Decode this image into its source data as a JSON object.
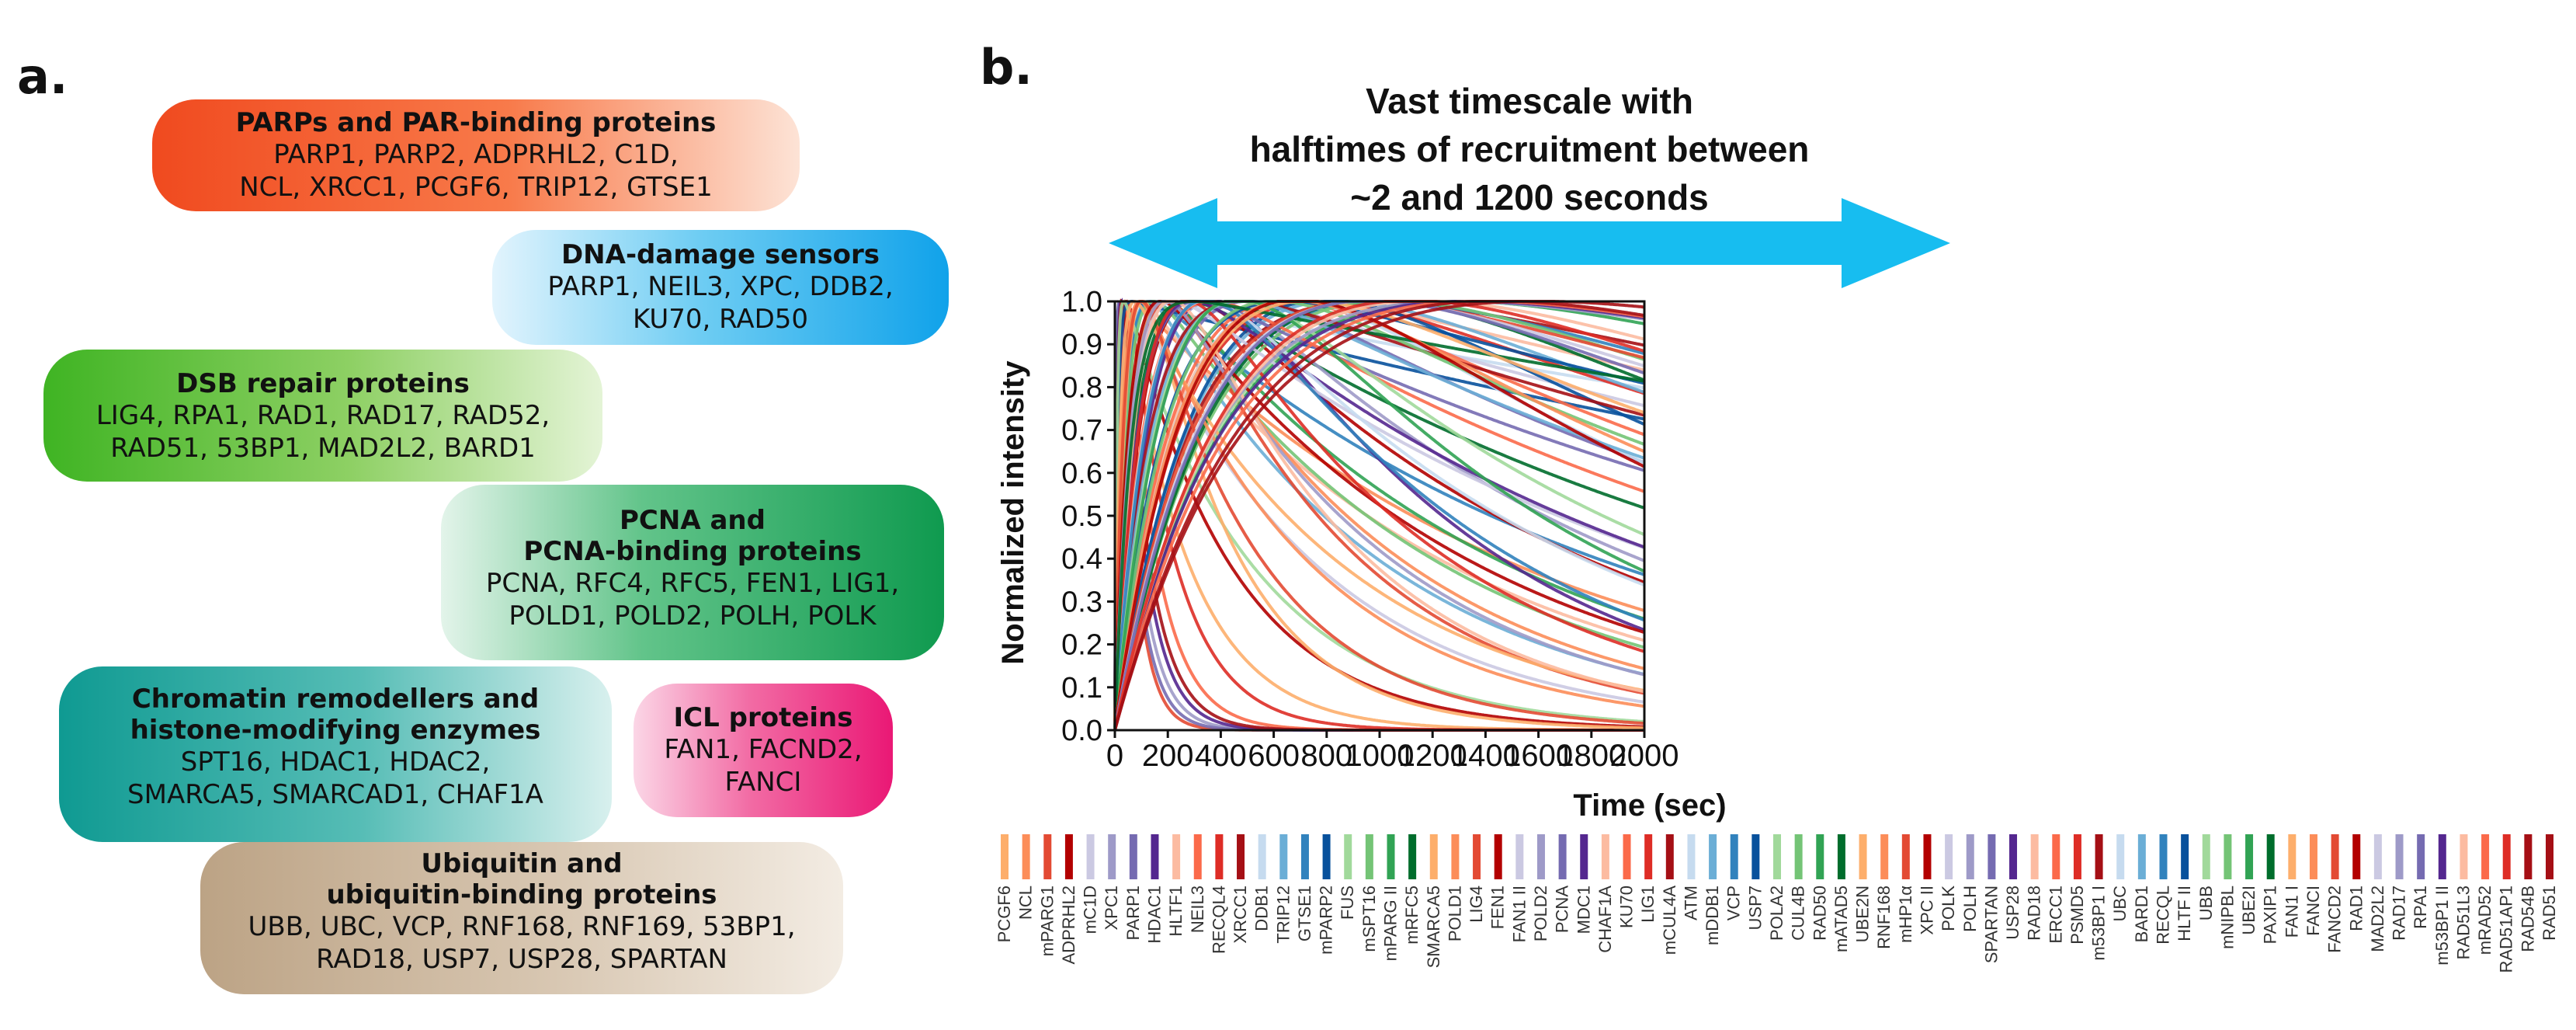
{
  "panel_a": {
    "label": "a.",
    "groups": [
      {
        "title": "PARPs and PAR-binding proteins",
        "lines": [
          "PARP1, PARP2, ADPRHL2, C1D,",
          "NCL, XRCC1, PCGF6, TRIP12, GTSE1"
        ],
        "color": "#f5552a"
      },
      {
        "title": "DNA-damage sensors",
        "lines": [
          "PARP1, NEIL3, XPC, DDB2,",
          "KU70, RAD50"
        ],
        "color": "#1aa3e8"
      },
      {
        "title": "DSB repair proteins",
        "lines": [
          "LIG4, RPA1, RAD1, RAD17, RAD52,",
          "RAD51, 53BP1, MAD2L2, BARD1"
        ],
        "color": "#4fba2c"
      },
      {
        "title": "PCNA and\nPCNA-binding proteins",
        "lines": [
          "PCNA, RFC4, RFC5, FEN1, LIG1,",
          "POLD1, POLD2, POLH, POLK"
        ],
        "color": "#1aa05a"
      },
      {
        "title": "Chromatin remodellers and\nhistone-modifying enzymes",
        "lines": [
          "SPT16, HDAC1, HDAC2,",
          "SMARCA5, SMARCAD1, CHAF1A"
        ],
        "color": "#16a39a"
      },
      {
        "title": "ICL proteins",
        "lines": [
          "FAN1, FACND2,",
          "FANCI"
        ],
        "color": "#ec1f78"
      },
      {
        "title": "Ubiquitin and\nubiquitin-binding proteins",
        "lines": [
          "UBB, UBC, VCP, RNF168, RNF169, 53BP1,",
          "RAD18, USP7, USP28, SPARTAN"
        ],
        "color": "#c4ab8d"
      }
    ]
  },
  "panel_b": {
    "label": "b.",
    "annotation": [
      "Vast timescale with",
      "halftimes of recruitment between",
      "~2 and 1200 seconds"
    ],
    "arrow_color": "#17bdf0"
  },
  "chart_data": {
    "type": "line",
    "title": "",
    "xlabel": "Time (sec)",
    "ylabel": "Normalized intensity",
    "xlim": [
      0,
      2000
    ],
    "ylim": [
      0,
      1
    ],
    "x_ticks": [
      0,
      200,
      400,
      600,
      800,
      1000,
      1200,
      1400,
      1600,
      1800,
      2000
    ],
    "y_ticks": [
      0.0,
      0.1,
      0.2,
      0.3,
      0.4,
      0.5,
      0.6,
      0.7,
      0.8,
      0.9,
      1.0
    ],
    "y_tick_labels": [
      "0.0",
      "0.1",
      "0.2",
      "0.3",
      "0.4",
      "0.5",
      "0.6",
      "0.7",
      "0.8",
      "0.9",
      "1.0"
    ],
    "legend_position": "bottom",
    "legend": [
      "PCGF6",
      "NCL",
      "mPARG1",
      "ADPRHL2",
      "mC1D",
      "XPC1",
      "PARP1",
      "HDAC1",
      "HLTF1",
      "NEIL3",
      "RECQL4",
      "XRCC1",
      "DDB1",
      "TRIP12",
      "GTSE1",
      "mPARP2",
      "FUS",
      "mSPT16",
      "mPARG II",
      "mRFC5",
      "SMARCA5",
      "POLD1",
      "LIG4",
      "FEN1",
      "FAN1 II",
      "POLD2",
      "PCNA",
      "MDC1",
      "CHAF1A",
      "KU70",
      "LIG1",
      "mCUL4A",
      "ATM",
      "mDDB1",
      "VCP",
      "USP7",
      "POLA2",
      "CUL4B",
      "RAD50",
      "mATAD5",
      "UBE2N",
      "RNF168",
      "mHP1α",
      "XPC II",
      "POLK",
      "POLH",
      "SPARTAN",
      "USP28",
      "RAD18",
      "ERCC1",
      "PSMD5",
      "m53BP1 I",
      "UBC",
      "BARD1",
      "RECQL",
      "HLTF II",
      "UBB",
      "mNIPBL",
      "UBE2I",
      "PAXIP1",
      "FAN1 I",
      "FANCI",
      "FANCD2",
      "RAD1",
      "MAD2L2",
      "RAD17",
      "RPA1",
      "m53BP1 II",
      "RAD51L3",
      "mRAD52",
      "RAD51AP1",
      "RAD54B",
      "RAD51"
    ],
    "legend_colors": [
      "#fdae6b",
      "#fc8d59",
      "#e34a33",
      "#b30000",
      "#cbc9e2",
      "#9e9ac8",
      "#756bb1",
      "#54278f",
      "#fcbba1",
      "#fb6a4a",
      "#de2d26",
      "#a50f15",
      "#c6dbef",
      "#6baed6",
      "#3182bd",
      "#08519c",
      "#a1d99b",
      "#74c476",
      "#31a354",
      "#006d2c",
      "#fdae6b",
      "#fc8d59",
      "#e34a33",
      "#b30000",
      "#cbc9e2",
      "#9e9ac8",
      "#756bb1",
      "#54278f",
      "#fcbba1",
      "#fb6a4a",
      "#de2d26",
      "#a50f15",
      "#c6dbef",
      "#6baed6",
      "#3182bd",
      "#08519c",
      "#a1d99b",
      "#74c476",
      "#31a354",
      "#006d2c",
      "#fdae6b",
      "#fc8d59",
      "#e34a33",
      "#b30000",
      "#cbc9e2",
      "#9e9ac8",
      "#756bb1",
      "#54278f",
      "#fcbba1",
      "#fb6a4a",
      "#de2d26",
      "#a50f15",
      "#c6dbef",
      "#6baed6",
      "#3182bd",
      "#08519c",
      "#a1d99b",
      "#74c476",
      "#31a354",
      "#006d2c",
      "#fdae6b",
      "#fc8d59",
      "#e34a33",
      "#b30000",
      "#cbc9e2",
      "#9e9ac8",
      "#756bb1",
      "#54278f",
      "#fcbba1",
      "#fb6a4a",
      "#de2d26",
      "#a50f15",
      "#a50f15"
    ],
    "series": [
      {
        "name": "PCGF6",
        "t_rise": 10,
        "t_decay": 250,
        "color": "#fdae6b"
      },
      {
        "name": "NCL",
        "t_rise": 15,
        "t_decay": 1500,
        "color": "#fc8d59"
      },
      {
        "name": "mPARG1",
        "t_rise": 8,
        "t_decay": 60,
        "color": "#e34a33"
      },
      {
        "name": "ADPRHL2",
        "t_rise": 12,
        "t_decay": 400,
        "color": "#b30000"
      },
      {
        "name": "mC1D",
        "t_rise": 20,
        "t_decay": 700,
        "color": "#cbc9e2"
      },
      {
        "name": "XPC1",
        "t_rise": 6,
        "t_decay": 80,
        "color": "#9e9ac8"
      },
      {
        "name": "PARP1",
        "t_rise": 5,
        "t_decay": 70,
        "color": "#756bb1"
      },
      {
        "name": "HDAC1",
        "t_rise": 10,
        "t_decay": 90,
        "color": "#54278f"
      },
      {
        "name": "HLTF1",
        "t_rise": 25,
        "t_decay": 1200,
        "color": "#fcbba1"
      },
      {
        "name": "NEIL3",
        "t_rise": 15,
        "t_decay": 120,
        "color": "#fb6a4a"
      },
      {
        "name": "RECQL4",
        "t_rise": 18,
        "t_decay": 180,
        "color": "#de2d26"
      },
      {
        "name": "XRCC1",
        "t_rise": 12,
        "t_decay": 100,
        "color": "#a50f15"
      },
      {
        "name": "DDB1",
        "t_rise": 30,
        "t_decay": 8000,
        "color": "#c6dbef"
      },
      {
        "name": "TRIP12",
        "t_rise": 40,
        "t_decay": 900,
        "color": "#6baed6"
      },
      {
        "name": "GTSE1",
        "t_rise": 35,
        "t_decay": 1800,
        "color": "#3182bd"
      },
      {
        "name": "mPARP2",
        "t_rise": 10,
        "t_decay": 6000,
        "color": "#08519c"
      },
      {
        "name": "FUS",
        "t_rise": 8,
        "t_decay": 500,
        "color": "#a1d99b"
      },
      {
        "name": "mSPT16",
        "t_rise": 45,
        "t_decay": 1100,
        "color": "#74c476"
      },
      {
        "name": "mPARG II",
        "t_rise": 60,
        "t_decay": 1300,
        "color": "#31a354"
      },
      {
        "name": "mRFC5",
        "t_rise": 80,
        "t_decay": 2500,
        "color": "#006d2c"
      },
      {
        "name": "SMARCA5",
        "t_rise": 50,
        "t_decay": 350,
        "color": "#fdae6b"
      },
      {
        "name": "POLD1",
        "t_rise": 70,
        "t_decay": 900,
        "color": "#fc8d59"
      },
      {
        "name": "LIG4",
        "t_rise": 90,
        "t_decay": 700,
        "color": "#e34a33"
      },
      {
        "name": "FEN1",
        "t_rise": 110,
        "t_decay": 1500,
        "color": "#b30000"
      },
      {
        "name": "FAN1 II",
        "t_rise": 130,
        "t_decay": 5000,
        "color": "#cbc9e2"
      },
      {
        "name": "POLD2",
        "t_rise": 150,
        "t_decay": 1600,
        "color": "#9e9ac8"
      },
      {
        "name": "PCNA",
        "t_rise": 180,
        "t_decay": 2800,
        "color": "#756bb1"
      },
      {
        "name": "MDC1",
        "t_rise": 200,
        "t_decay": 1000,
        "color": "#54278f"
      },
      {
        "name": "CHAF1A",
        "t_rise": 220,
        "t_decay": 6000,
        "color": "#fcbba1"
      },
      {
        "name": "KU70",
        "t_rise": 250,
        "t_decay": 3000,
        "color": "#fb6a4a"
      },
      {
        "name": "LIG1",
        "t_rise": 280,
        "t_decay": 4000,
        "color": "#de2d26"
      },
      {
        "name": "mCUL4A",
        "t_rise": 300,
        "t_decay": 7000,
        "color": "#a50f15"
      },
      {
        "name": "ATM",
        "t_rise": 320,
        "t_decay": 2200,
        "color": "#c6dbef"
      },
      {
        "name": "mDDB1",
        "t_rise": 350,
        "t_decay": 3500,
        "color": "#6baed6"
      },
      {
        "name": "VCP",
        "t_rise": 380,
        "t_decay": 5000,
        "color": "#3182bd"
      },
      {
        "name": "USP7",
        "t_rise": 400,
        "t_decay": 2500,
        "color": "#08519c"
      },
      {
        "name": "POLA2",
        "t_rise": 420,
        "t_decay": 9000,
        "color": "#a1d99b"
      },
      {
        "name": "CUL4B",
        "t_rise": 450,
        "t_decay": 4000,
        "color": "#74c476"
      },
      {
        "name": "RAD50",
        "t_rise": 480,
        "t_decay": 6500,
        "color": "#31a354"
      },
      {
        "name": "mATAD5",
        "t_rise": 500,
        "t_decay": 3000,
        "color": "#006d2c"
      },
      {
        "name": "UBE2N",
        "t_rise": 20,
        "t_decay": 800,
        "color": "#fdae6b"
      },
      {
        "name": "RNF168",
        "t_rise": 30,
        "t_decay": 650,
        "color": "#fc8d59"
      },
      {
        "name": "mHP1α",
        "t_rise": 40,
        "t_decay": 450,
        "color": "#e34a33"
      },
      {
        "name": "XPC II",
        "t_rise": 55,
        "t_decay": 1200,
        "color": "#b30000"
      },
      {
        "name": "POLK",
        "t_rise": 65,
        "t_decay": 2000,
        "color": "#cbc9e2"
      },
      {
        "name": "POLH",
        "t_rise": 75,
        "t_decay": 850,
        "color": "#9e9ac8"
      },
      {
        "name": "SPARTAN",
        "t_rise": 85,
        "t_decay": 3200,
        "color": "#756bb1"
      },
      {
        "name": "USP28",
        "t_rise": 95,
        "t_decay": 1900,
        "color": "#54278f"
      },
      {
        "name": "RAD18",
        "t_rise": 105,
        "t_decay": 700,
        "color": "#fcbba1"
      },
      {
        "name": "ERCC1",
        "t_rise": 115,
        "t_decay": 2600,
        "color": "#fb6a4a"
      },
      {
        "name": "PSMD5",
        "t_rise": 125,
        "t_decay": 950,
        "color": "#de2d26"
      },
      {
        "name": "m53BP1 I",
        "t_rise": 135,
        "t_decay": 4500,
        "color": "#a50f15"
      },
      {
        "name": "UBC",
        "t_rise": 145,
        "t_decay": 1400,
        "color": "#c6dbef"
      },
      {
        "name": "BARD1",
        "t_rise": 160,
        "t_decay": 3000,
        "color": "#6baed6"
      },
      {
        "name": "RECQL",
        "t_rise": 170,
        "t_decay": 1100,
        "color": "#3182bd"
      },
      {
        "name": "HLTF II",
        "t_rise": 190,
        "t_decay": 5500,
        "color": "#08519c"
      },
      {
        "name": "UBB",
        "t_rise": 210,
        "t_decay": 1700,
        "color": "#a1d99b"
      },
      {
        "name": "mNIPBL",
        "t_rise": 230,
        "t_decay": 2900,
        "color": "#74c476"
      },
      {
        "name": "UBE2I",
        "t_rise": 260,
        "t_decay": 1300,
        "color": "#31a354"
      },
      {
        "name": "PAXIP1",
        "t_rise": 60,
        "t_decay": 8000,
        "color": "#006d2c"
      },
      {
        "name": "FAN1 I",
        "t_rise": 290,
        "t_decay": 3300,
        "color": "#fdae6b"
      },
      {
        "name": "FANCI",
        "t_rise": 310,
        "t_decay": 2400,
        "color": "#fc8d59"
      },
      {
        "name": "FANCD2",
        "t_rise": 340,
        "t_decay": 5200,
        "color": "#e34a33"
      },
      {
        "name": "RAD1",
        "t_rise": 370,
        "t_decay": 2000,
        "color": "#b30000"
      },
      {
        "name": "MAD2L2",
        "t_rise": 390,
        "t_decay": 4200,
        "color": "#cbc9e2"
      },
      {
        "name": "RAD17",
        "t_rise": 410,
        "t_decay": 9000,
        "color": "#9e9ac8"
      },
      {
        "name": "RPA1",
        "t_rise": 430,
        "t_decay": 3600,
        "color": "#756bb1"
      },
      {
        "name": "m53BP1 II",
        "t_rise": 460,
        "t_decay": 8000,
        "color": "#54278f"
      },
      {
        "name": "RAD51L3",
        "t_rise": 490,
        "t_decay": 4800,
        "color": "#fcbba1"
      },
      {
        "name": "mRAD52",
        "t_rise": 510,
        "t_decay": 7200,
        "color": "#fb6a4a"
      },
      {
        "name": "RAD51AP1",
        "t_rise": 530,
        "t_decay": 3800,
        "color": "#de2d26"
      },
      {
        "name": "RAD54B",
        "t_rise": 560,
        "t_decay": 9000,
        "color": "#a50f15"
      },
      {
        "name": "RAD51",
        "t_rise": 600,
        "t_decay": 6000,
        "color": "#a50f15"
      }
    ]
  }
}
